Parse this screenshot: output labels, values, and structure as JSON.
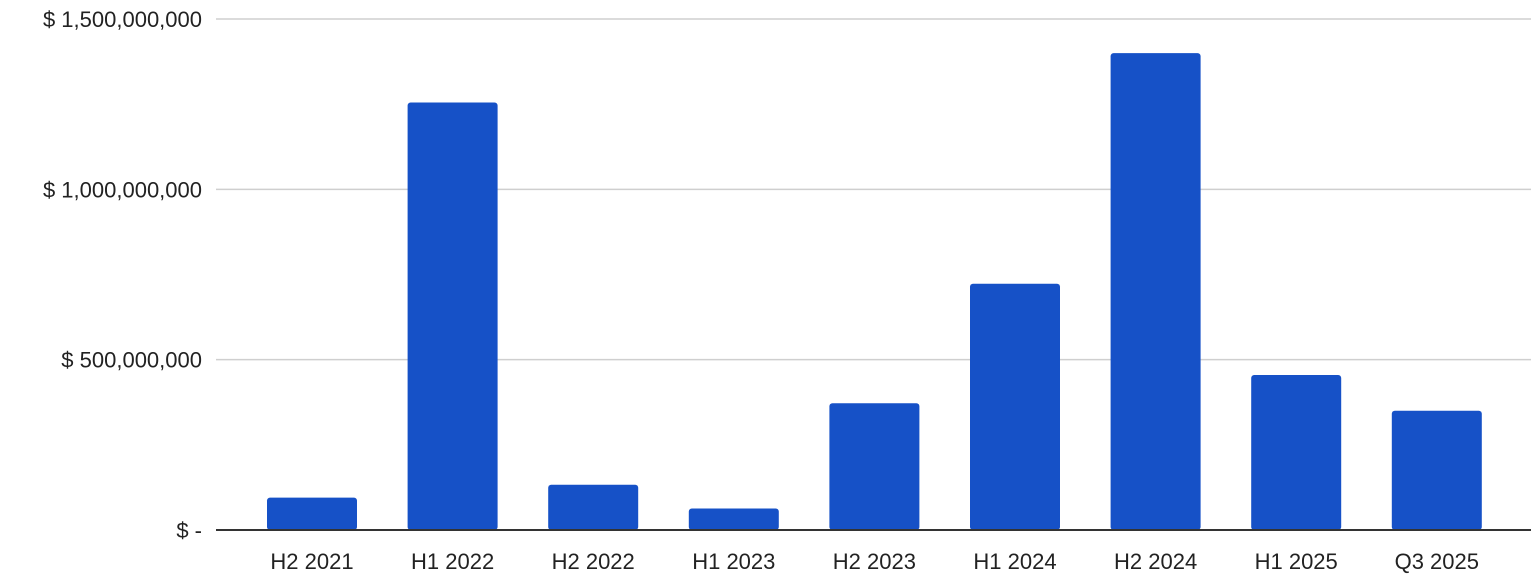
{
  "chart_data": {
    "type": "bar",
    "categories": [
      "H2 2021",
      "H1 2022",
      "H2 2022",
      "H1 2023",
      "H2 2023",
      "H1 2024",
      "H2 2024",
      "H1 2025",
      "Q3 2025"
    ],
    "values": [
      95000000,
      1255000000,
      133000000,
      63000000,
      372000000,
      723000000,
      1400000000,
      455000000,
      350000000
    ],
    "title": "",
    "xlabel": "",
    "ylabel": "",
    "ylim": [
      0,
      1500000000
    ],
    "yticks": [
      0,
      500000000,
      1000000000,
      1500000000
    ],
    "ytick_labels": [
      "$ -",
      "$ 500,000,000",
      "$ 1,000,000,000",
      "$ 1,500,000,000"
    ],
    "grid": true,
    "legend": "none",
    "bar_color": "#1651c7",
    "grid_color": "#cfcfcf",
    "axis_color": "#333333"
  }
}
